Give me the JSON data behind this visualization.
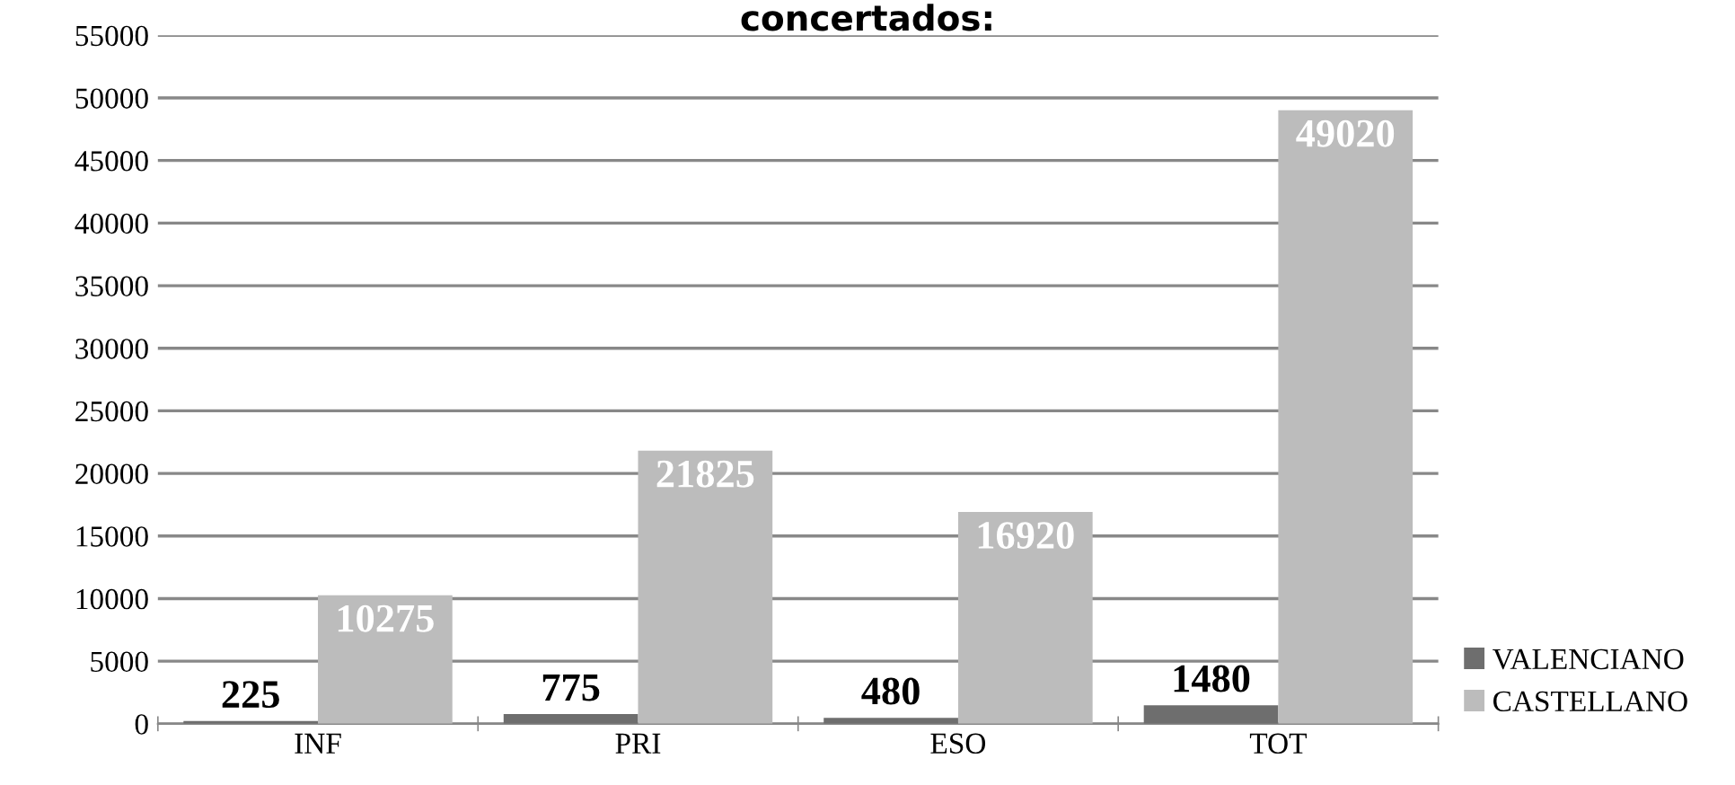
{
  "chart_data": {
    "type": "bar",
    "title": "concertados:",
    "categories": [
      "INF",
      "PRI",
      "ESO",
      "TOT"
    ],
    "series": [
      {
        "name": "VALENCIANO",
        "color": "#6e6e6e",
        "values": [
          225,
          775,
          480,
          1480
        ]
      },
      {
        "name": "CASTELLANO",
        "color": "#bcbcbc",
        "values": [
          10275,
          21825,
          16920,
          49020
        ]
      }
    ],
    "ylim": [
      0,
      55000
    ],
    "yticks": [
      0,
      5000,
      10000,
      15000,
      20000,
      25000,
      30000,
      35000,
      40000,
      45000,
      50000,
      55000
    ],
    "grid": "y",
    "legend": "right",
    "data_labels": true
  }
}
